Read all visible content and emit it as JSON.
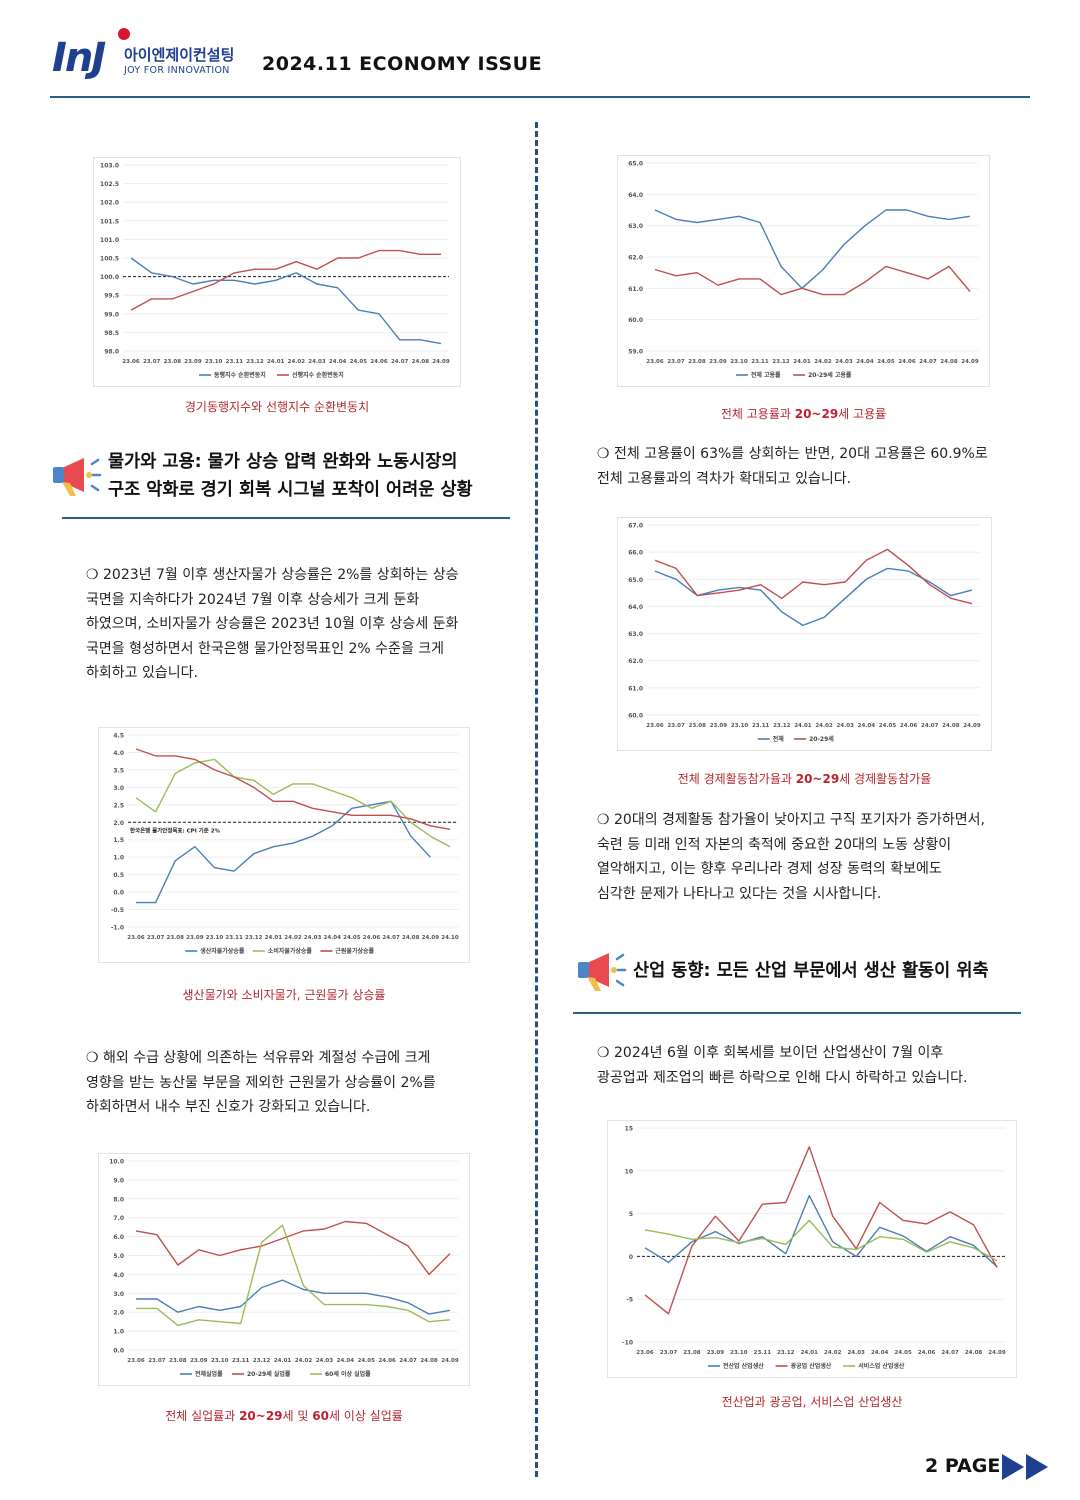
{
  "header": {
    "logo_mark": "InJ",
    "logo_kr": "아이엔제이컨설팅",
    "logo_en": "JOY FOR INNOVATION",
    "issue_title": "2024.11 ECONOMY ISSUE"
  },
  "footer": {
    "page_label": "2 PAGE"
  },
  "sections": {
    "prices_employment": {
      "title_line1": "물가와 고용: 물가 상승 압력 완화와 노동시장의",
      "title_line2": "구조 악화로 경기 회복 시그널 포착이 어려운 상황"
    },
    "industry": {
      "title": "산업 동향: 모든 산업 부문에서 생산 활동이 위축"
    }
  },
  "paragraphs": {
    "p1": [
      "❍ 2023년 7월 이후 생산자물가 상승률은 2%를 상회하는 상승",
      "국면을 지속하다가 2024년 7월 이후 상승세가 크게 둔화",
      "하였으며, 소비자물가 상승률은 2023년 10월 이후 상승세 둔화",
      "국면을 형성하면서 한국은행 물가안정목표인 2% 수준을 크게",
      "하회하고 있습니다."
    ],
    "p2": [
      "❍ 해외 수급 상황에 의존하는 석유류와 계절성 수급에 크게",
      "영향을 받는 농산물 부문을 제외한 근원물가 상승률이 2%를",
      "하회하면서 내수 부진 신호가 강화되고 있습니다."
    ],
    "p3": [
      "❍ 전체 고용률이 63%를 상회하는 반면, 20대 고용률은 60.9%로",
      "전체 고용률과의 격차가 확대되고 있습니다."
    ],
    "p4": [
      "❍ 20대의 경제활동 참가율이 낮아지고 구직 포기자가 증가하면서,",
      "숙련 등 미래 인적 자본의 축적에 중요한 20대의 노동 상황이",
      "열악해지고, 이는 향후 우리나라 경제 성장 동력의 확보에도",
      "심각한 문제가 나타나고 있다는 것을 시사합니다."
    ],
    "p5": [
      "❍ 2024년 6월 이후 회복세를 보이던 산업생산이 7월 이후",
      "광공업과 제조업의 빠른 하락으로 인해 다시 하락하고 있습니다."
    ]
  },
  "colors": {
    "blue": "#4a7eb8",
    "red": "#c0504d",
    "green": "#9bbb59",
    "navy": "#1f3f8f",
    "accent_red": "#c21f2c"
  },
  "chart_data": [
    {
      "id": "c1",
      "type": "line",
      "caption": "경기동행지수와 선행지수 순환변동치",
      "x": [
        "23.06",
        "23.07",
        "23.08",
        "23.09",
        "23.10",
        "23.11",
        "23.12",
        "24.01",
        "24.02",
        "24.03",
        "24.04",
        "24.05",
        "24.06",
        "24.07",
        "24.08",
        "24.09"
      ],
      "ylim": [
        98.0,
        103.0
      ],
      "yticks": [
        "98.0",
        "98.5",
        "99.0",
        "99.5",
        "100.0",
        "100.5",
        "101.0",
        "101.5",
        "102.0",
        "102.5",
        "103.0"
      ],
      "reference": 100.0,
      "series": [
        {
          "name": "동행지수 순환변동치",
          "color": "#4a7eb8",
          "values": [
            100.5,
            100.1,
            100.0,
            99.8,
            99.9,
            99.9,
            99.8,
            99.9,
            100.1,
            99.8,
            99.7,
            99.1,
            99.0,
            98.3,
            98.3,
            98.2
          ]
        },
        {
          "name": "선행지수 순환변동치",
          "color": "#c0504d",
          "values": [
            99.1,
            99.4,
            99.4,
            99.6,
            99.8,
            100.1,
            100.2,
            100.2,
            100.4,
            100.2,
            100.5,
            100.5,
            100.7,
            100.7,
            100.6,
            100.6
          ]
        }
      ]
    },
    {
      "id": "c2",
      "type": "line",
      "caption": "생산물가와 소비자물가, 근원물가 상승률",
      "x": [
        "23.06",
        "23.07",
        "23.08",
        "23.09",
        "23.10",
        "23.11",
        "23.12",
        "24.01",
        "24.02",
        "24.03",
        "24.04",
        "24.05",
        "24.06",
        "24.07",
        "24.08",
        "24.09",
        "24.10"
      ],
      "ylim": [
        -1.0,
        4.5
      ],
      "yticks": [
        "-1.0",
        "-0.5",
        "0.0",
        "0.5",
        "1.0",
        "1.5",
        "2.0",
        "2.5",
        "3.0",
        "3.5",
        "4.0",
        "4.5"
      ],
      "reference": 2.0,
      "annotation": "한국은행 물가안정목표: CPI 기준 2%",
      "series": [
        {
          "name": "생산자물가상승률",
          "color": "#4a7eb8",
          "values": [
            -0.3,
            -0.3,
            0.9,
            1.3,
            0.7,
            0.6,
            1.1,
            1.3,
            1.4,
            1.6,
            1.9,
            2.4,
            2.5,
            2.6,
            1.6,
            1.0,
            null
          ]
        },
        {
          "name": "소비자물가상승률",
          "color": "#9bbb59",
          "values": [
            2.7,
            2.3,
            3.4,
            3.7,
            3.8,
            3.3,
            3.2,
            2.8,
            3.1,
            3.1,
            2.9,
            2.7,
            2.4,
            2.6,
            2.0,
            1.6,
            1.3
          ]
        },
        {
          "name": "근원물가상승률",
          "color": "#c0504d",
          "values": [
            4.1,
            3.9,
            3.9,
            3.8,
            3.5,
            3.3,
            3.0,
            2.6,
            2.6,
            2.4,
            2.3,
            2.2,
            2.2,
            2.2,
            2.1,
            1.9,
            1.8
          ]
        }
      ]
    },
    {
      "id": "c3",
      "type": "line",
      "caption_pre": "전체 실업률과 ",
      "caption_bold1": "20~29",
      "caption_mid": "세 및 ",
      "caption_bold2": "60",
      "caption_post": "세 이상 실업률",
      "x": [
        "23.06",
        "23.07",
        "23.08",
        "23.09",
        "23.10",
        "23.11",
        "23.12",
        "24.01",
        "24.02",
        "24.03",
        "24.04",
        "24.05",
        "24.06",
        "24.07",
        "24.08",
        "24.09"
      ],
      "ylim": [
        0.0,
        10.0
      ],
      "yticks": [
        "0.0",
        "1.0",
        "2.0",
        "3.0",
        "4.0",
        "5.0",
        "6.0",
        "7.0",
        "8.0",
        "9.0",
        "10.0"
      ],
      "series": [
        {
          "name": "전체실업률",
          "color": "#4a7eb8",
          "values": [
            2.7,
            2.7,
            2.0,
            2.3,
            2.1,
            2.3,
            3.3,
            3.7,
            3.2,
            3.0,
            3.0,
            3.0,
            2.8,
            2.5,
            1.9,
            2.1
          ]
        },
        {
          "name": "20-29세 실업률",
          "color": "#c0504d",
          "values": [
            6.3,
            6.1,
            4.5,
            5.3,
            5.0,
            5.3,
            5.5,
            5.9,
            6.3,
            6.4,
            6.8,
            6.7,
            6.1,
            5.5,
            4.0,
            5.1
          ]
        },
        {
          "name": "60세 이상 실업률",
          "color": "#9bbb59",
          "values": [
            2.2,
            2.2,
            1.3,
            1.6,
            1.5,
            1.4,
            5.7,
            6.6,
            3.4,
            2.4,
            2.4,
            2.4,
            2.3,
            2.1,
            1.5,
            1.6
          ]
        }
      ]
    },
    {
      "id": "c4",
      "type": "line",
      "caption_pre": "전체 고용률과 ",
      "caption_bold1": "20~29",
      "caption_post": "세 고용률",
      "x": [
        "23.06",
        "23.07",
        "23.08",
        "23.09",
        "23.10",
        "23.11",
        "23.12",
        "24.01",
        "24.02",
        "24.03",
        "24.04",
        "24.05",
        "24.06",
        "24.07",
        "24.08",
        "24.09"
      ],
      "ylim": [
        59.0,
        65.0
      ],
      "yticks": [
        "59.0",
        "60.0",
        "61.0",
        "62.0",
        "63.0",
        "64.0",
        "65.0"
      ],
      "series": [
        {
          "name": "전체 고용률",
          "color": "#4a7eb8",
          "values": [
            63.5,
            63.2,
            63.1,
            63.2,
            63.3,
            63.1,
            61.7,
            61.0,
            61.6,
            62.4,
            63.0,
            63.5,
            63.5,
            63.3,
            63.2,
            63.3
          ]
        },
        {
          "name": "20-29세 고용률",
          "color": "#c0504d",
          "values": [
            61.6,
            61.4,
            61.5,
            61.1,
            61.3,
            61.3,
            60.8,
            61.0,
            60.8,
            60.8,
            61.2,
            61.7,
            61.5,
            61.3,
            61.7,
            60.9
          ]
        }
      ]
    },
    {
      "id": "c5",
      "type": "line",
      "caption_pre": "전체 경제활동참가율과 ",
      "caption_bold1": "20~29",
      "caption_post": "세 경제활동참가율",
      "x": [
        "23.06",
        "23.07",
        "23.08",
        "23.09",
        "23.10",
        "23.11",
        "23.12",
        "24.01",
        "24.02",
        "24.03",
        "24.04",
        "24.05",
        "24.06",
        "24.07",
        "24.08",
        "24.09"
      ],
      "ylim": [
        60.0,
        67.0
      ],
      "yticks": [
        "60.0",
        "61.0",
        "62.0",
        "63.0",
        "64.0",
        "65.0",
        "66.0",
        "67.0"
      ],
      "series": [
        {
          "name": "전체",
          "color": "#4a7eb8",
          "values": [
            65.3,
            65.0,
            64.4,
            64.6,
            64.7,
            64.6,
            63.8,
            63.3,
            63.6,
            64.3,
            65.0,
            65.4,
            65.3,
            64.9,
            64.4,
            64.6
          ]
        },
        {
          "name": "20-29세",
          "color": "#c0504d",
          "values": [
            65.7,
            65.4,
            64.4,
            64.5,
            64.6,
            64.8,
            64.3,
            64.9,
            64.8,
            64.9,
            65.7,
            66.1,
            65.5,
            64.8,
            64.3,
            64.1
          ]
        }
      ]
    },
    {
      "id": "c6",
      "type": "line",
      "caption": "전산업과 광공업, 서비스업 산업생산",
      "x": [
        "23.06",
        "23.07",
        "23.08",
        "23.09",
        "23.10",
        "23.11",
        "23.12",
        "24.01",
        "24.02",
        "24.03",
        "24.04",
        "24.05",
        "24.06",
        "24.07",
        "24.08",
        "24.09"
      ],
      "ylim": [
        -10,
        15
      ],
      "yticks": [
        "-10",
        "-5",
        "0",
        "5",
        "10",
        "15"
      ],
      "reference": 0,
      "series": [
        {
          "name": "전산업 산업생산",
          "color": "#4a7eb8",
          "values": [
            1.0,
            -0.7,
            1.7,
            2.9,
            1.5,
            2.3,
            0.3,
            7.1,
            1.7,
            0.0,
            3.4,
            2.4,
            0.6,
            2.3,
            1.3,
            -1.2
          ]
        },
        {
          "name": "광공업 산업생산",
          "color": "#c0504d",
          "values": [
            -4.5,
            -6.7,
            1.2,
            4.7,
            1.8,
            6.1,
            6.3,
            12.8,
            4.7,
            0.9,
            6.3,
            4.2,
            3.8,
            5.2,
            3.7,
            -1.3
          ]
        },
        {
          "name": "서비스업 산업생산",
          "color": "#9bbb59",
          "values": [
            3.1,
            2.6,
            2.0,
            2.2,
            1.6,
            2.1,
            1.4,
            4.2,
            1.1,
            0.8,
            2.3,
            2.0,
            0.5,
            1.7,
            1.0,
            -0.5
          ]
        }
      ]
    }
  ]
}
